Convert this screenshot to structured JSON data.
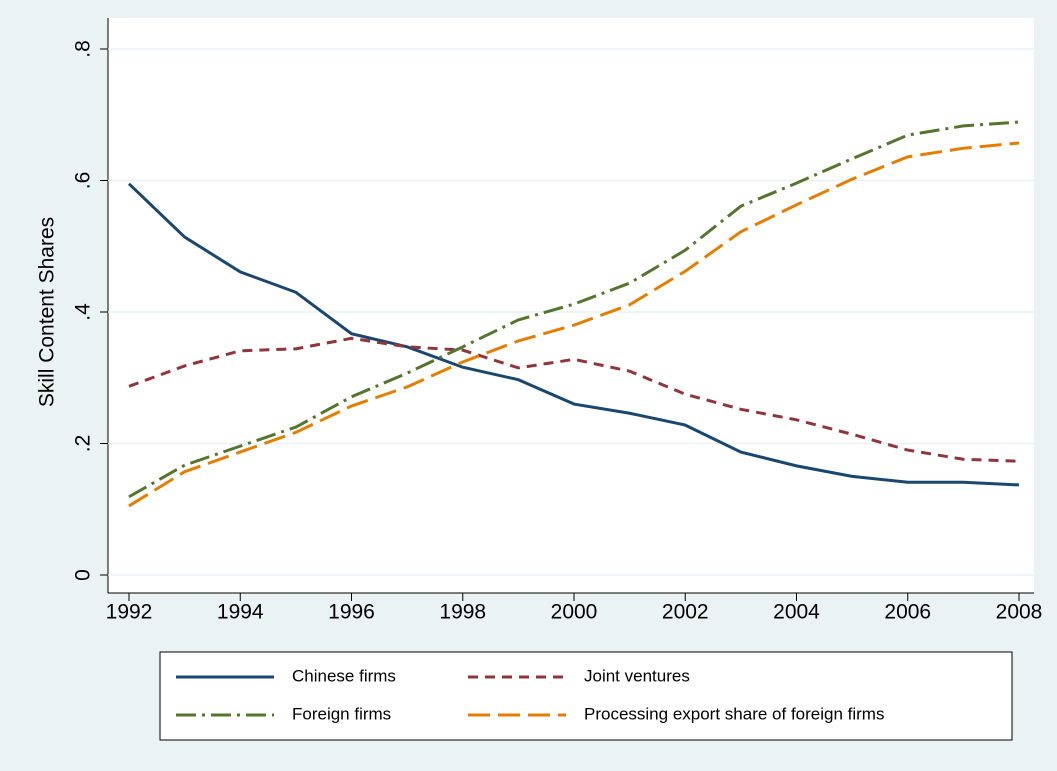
{
  "chart_data": {
    "type": "line",
    "y_label": "Skill Content Shares",
    "x": [
      1992,
      1993,
      1994,
      1995,
      1996,
      1997,
      1998,
      1999,
      2000,
      2001,
      2002,
      2003,
      2004,
      2005,
      2006,
      2007,
      2008
    ],
    "series": [
      {
        "name": "Chinese firms",
        "color": "#1a476f",
        "dash": "solid",
        "values": [
          0.595,
          0.514,
          0.461,
          0.43,
          0.367,
          0.347,
          0.316,
          0.297,
          0.26,
          0.246,
          0.228,
          0.187,
          0.166,
          0.15,
          0.141,
          0.141,
          0.137
        ]
      },
      {
        "name": "Joint ventures",
        "color": "#90353b",
        "dash": "dash",
        "values": [
          0.287,
          0.318,
          0.341,
          0.344,
          0.36,
          0.347,
          0.342,
          0.315,
          0.328,
          0.31,
          0.275,
          0.252,
          0.236,
          0.214,
          0.19,
          0.176,
          0.173
        ]
      },
      {
        "name": "Foreign firms",
        "color": "#55752f",
        "dash": "long-dash-dot",
        "values": [
          0.119,
          0.167,
          0.196,
          0.225,
          0.271,
          0.307,
          0.347,
          0.388,
          0.412,
          0.444,
          0.494,
          0.561,
          0.596,
          0.633,
          0.669,
          0.683,
          0.689
        ]
      },
      {
        "name": "Processing export share of foreign firms",
        "color": "#e37e00",
        "dash": "long-dash",
        "values": [
          0.105,
          0.157,
          0.187,
          0.217,
          0.257,
          0.286,
          0.324,
          0.356,
          0.38,
          0.411,
          0.462,
          0.522,
          0.563,
          0.602,
          0.636,
          0.649,
          0.657
        ]
      }
    ],
    "xlim": [
      1992,
      2008
    ],
    "xticks": [
      1992,
      1994,
      1996,
      1998,
      2000,
      2002,
      2004,
      2006,
      2008
    ],
    "ylim": [
      0,
      0.8
    ],
    "yticks": [
      {
        "value": 0,
        "label": "0"
      },
      {
        "value": 0.2,
        "label": ".2"
      },
      {
        "value": 0.4,
        "label": ".4"
      },
      {
        "value": 0.6,
        "label": ".6"
      },
      {
        "value": 0.8,
        "label": ".8"
      }
    ],
    "grid": true,
    "legend": "bottom"
  }
}
